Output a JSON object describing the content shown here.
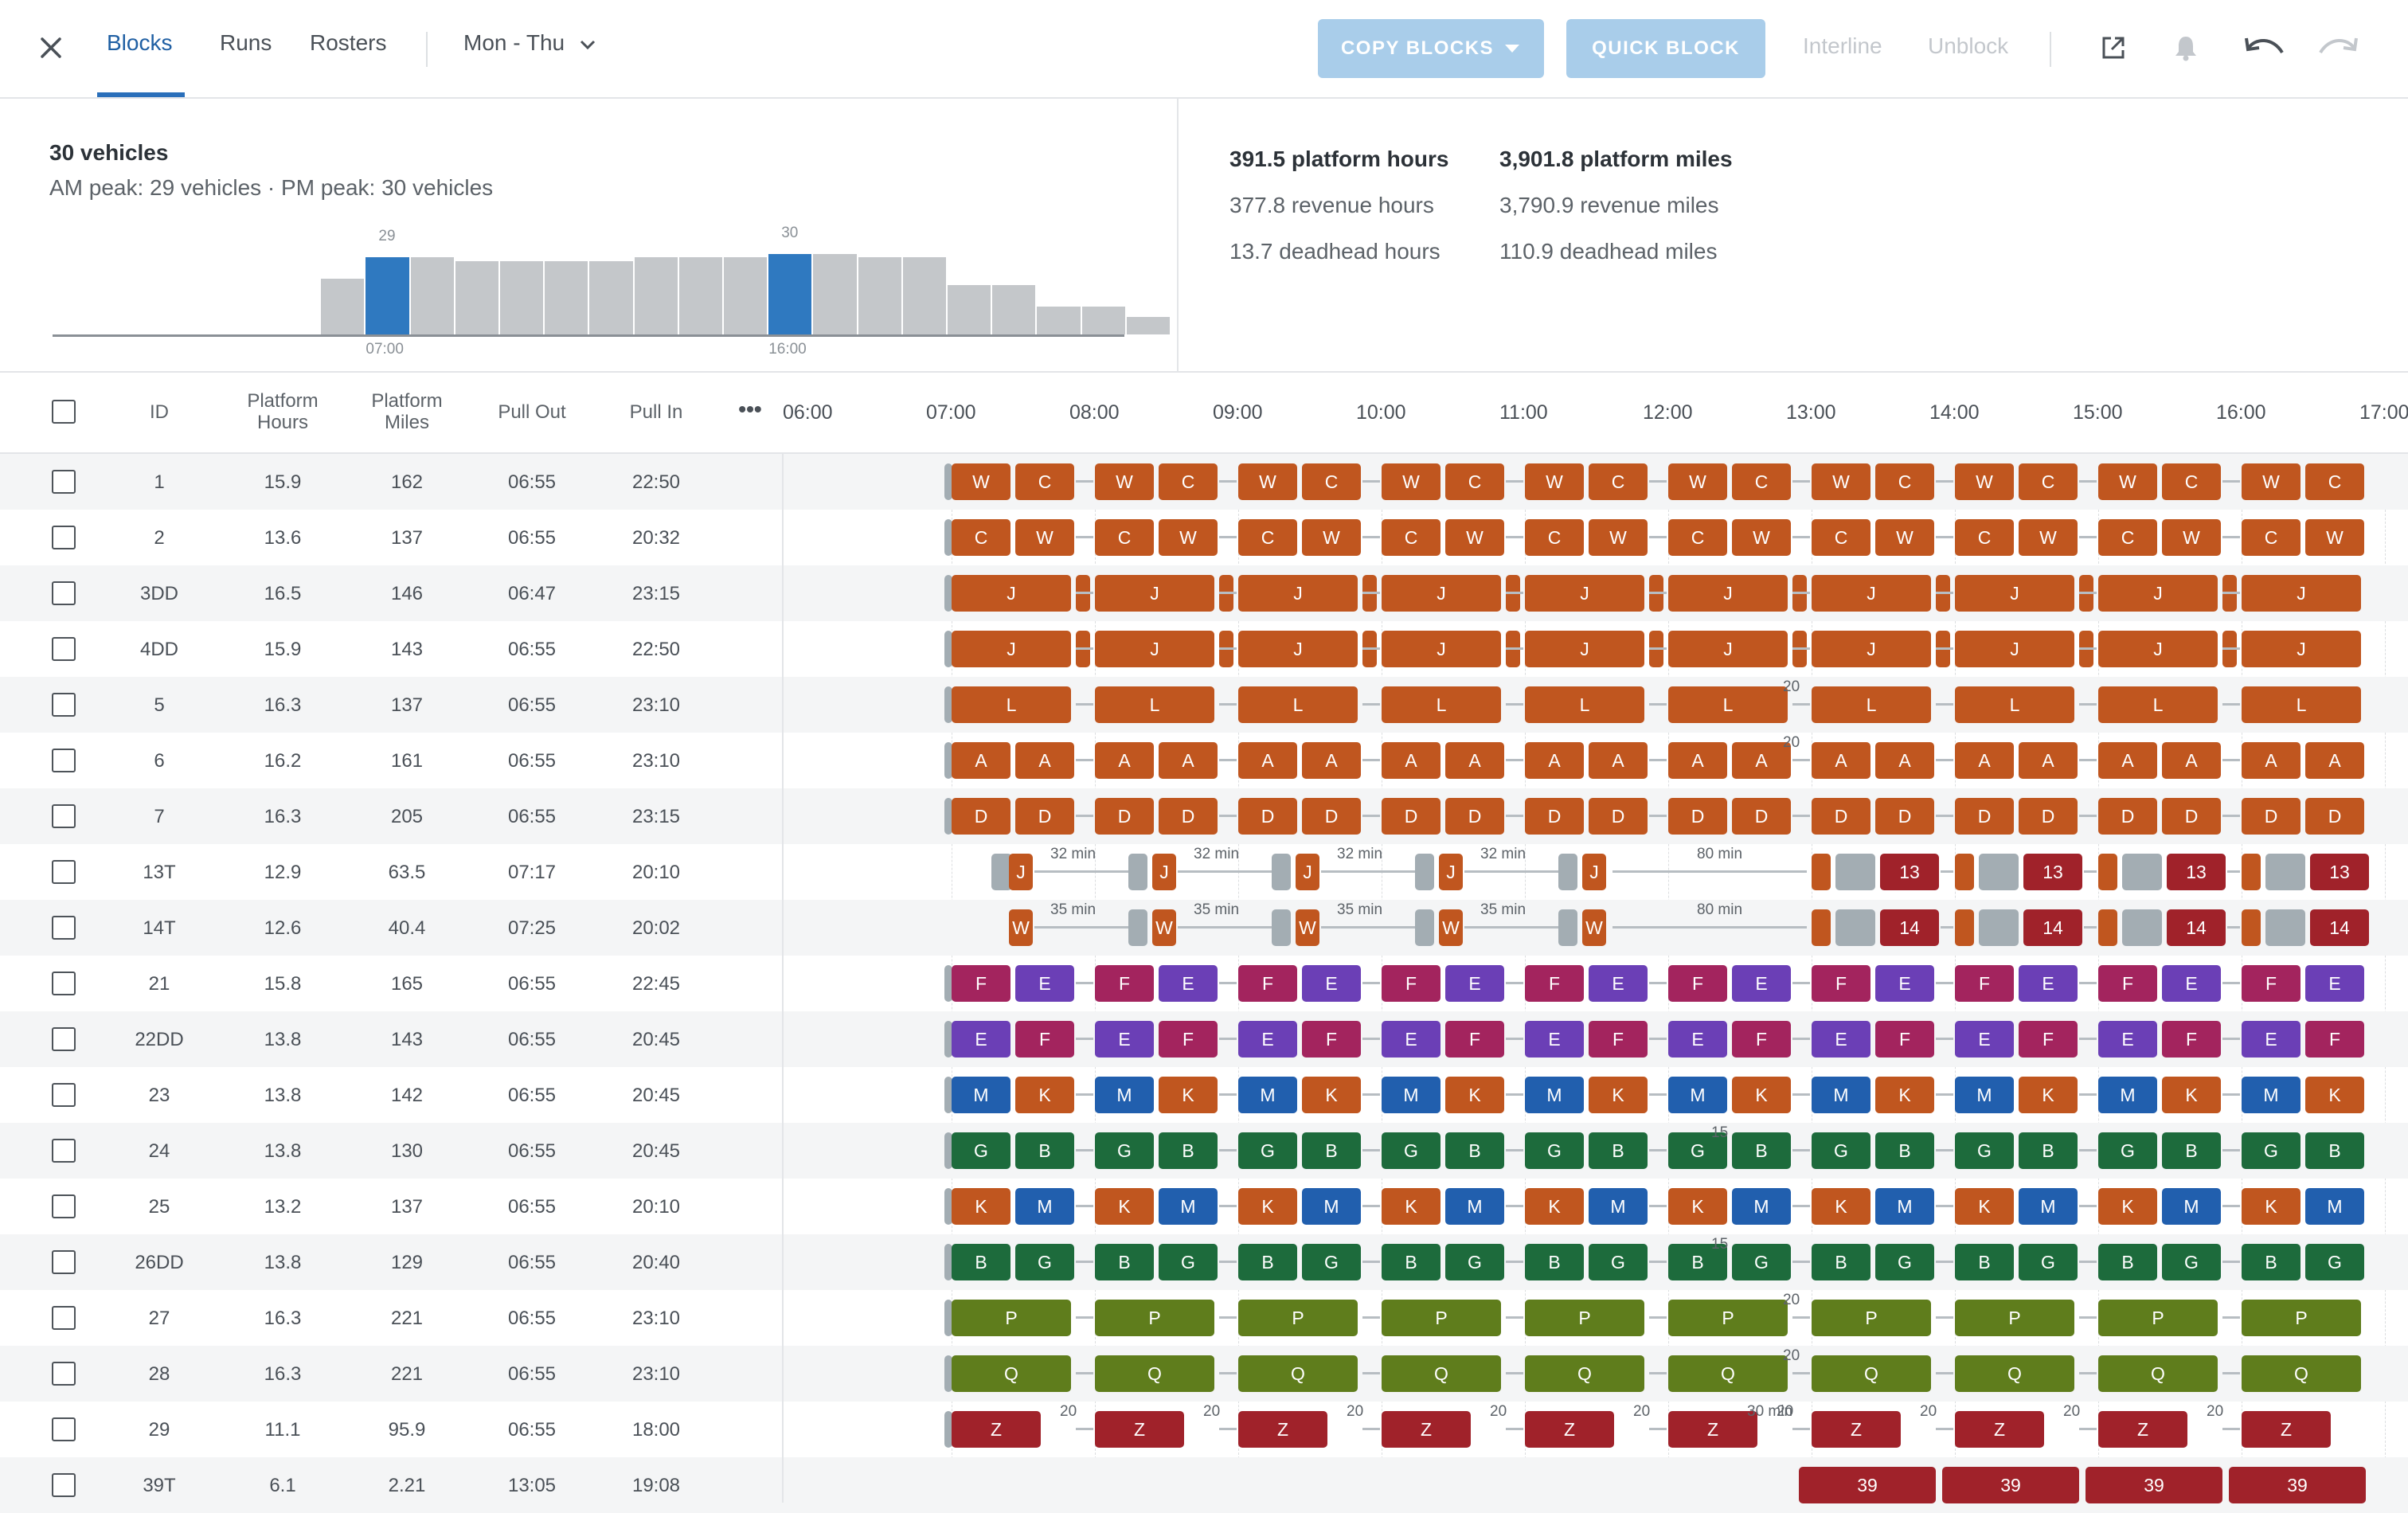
{
  "nav": {
    "tabs": [
      {
        "label": "Blocks",
        "active": true
      },
      {
        "label": "Runs"
      },
      {
        "label": "Rosters"
      }
    ],
    "day_filter": "Mon - Thu",
    "copy_blocks": "COPY BLOCKS",
    "quick_block": "QUICK BLOCK",
    "interline": "Interline",
    "unblock": "Unblock"
  },
  "summary": {
    "vehicles": "30 vehicles",
    "peaks": "AM peak: 29 vehicles · PM peak: 30 vehicles",
    "platform_hours": "391.5 platform hours",
    "revenue_hours": "377.8 revenue hours",
    "deadhead_hours": "13.7 deadhead hours",
    "platform_miles": "3,901.8 platform miles",
    "revenue_miles": "3,790.9 revenue miles",
    "deadhead_miles": "110.9 deadhead miles"
  },
  "histogram": {
    "am_peak_label": "29",
    "pm_peak_label": "30",
    "am_time": "07:00",
    "pm_time": "16:00",
    "levels": [
      0,
      0,
      0,
      0,
      0,
      0,
      16,
      22,
      22,
      21,
      21,
      21,
      21,
      22,
      22,
      22,
      23,
      23,
      22,
      22,
      14,
      14,
      8,
      8,
      5
    ]
  },
  "table_header": {
    "id": "ID",
    "platform_hours": "Platform Hours",
    "platform_miles": "Platform Miles",
    "pull_out": "Pull Out",
    "pull_in": "Pull In",
    "more": "•••"
  },
  "timeline_hours": [
    "06:00",
    "07:00",
    "08:00",
    "09:00",
    "10:00",
    "11:00",
    "12:00",
    "13:00",
    "14:00",
    "15:00",
    "16:00",
    "17:00"
  ],
  "colors": {
    "accent": "#2a6fba",
    "orange": "#c0561f",
    "purple": "#6b3fb6",
    "magenta": "#a3245e",
    "blue": "#215fae",
    "green": "#1d6b3c",
    "olive": "#5f7d1c",
    "red": "#a0222a",
    "deadhead": "#a3adb3"
  },
  "rows": [
    {
      "id": "1",
      "platform_hours": "15.9",
      "platform_miles": "162",
      "pull_out": "06:55",
      "pull_in": "22:50"
    },
    {
      "id": "2",
      "platform_hours": "13.6",
      "platform_miles": "137",
      "pull_out": "06:55",
      "pull_in": "20:32"
    },
    {
      "id": "3DD",
      "platform_hours": "16.5",
      "platform_miles": "146",
      "pull_out": "06:47",
      "pull_in": "23:15"
    },
    {
      "id": "4DD",
      "platform_hours": "15.9",
      "platform_miles": "143",
      "pull_out": "06:55",
      "pull_in": "22:50"
    },
    {
      "id": "5",
      "platform_hours": "16.3",
      "platform_miles": "137",
      "pull_out": "06:55",
      "pull_in": "23:10"
    },
    {
      "id": "6",
      "platform_hours": "16.2",
      "platform_miles": "161",
      "pull_out": "06:55",
      "pull_in": "23:10"
    },
    {
      "id": "7",
      "platform_hours": "16.3",
      "platform_miles": "205",
      "pull_out": "06:55",
      "pull_in": "23:15"
    },
    {
      "id": "13T",
      "platform_hours": "12.9",
      "platform_miles": "63.5",
      "pull_out": "07:17",
      "pull_in": "20:10"
    },
    {
      "id": "14T",
      "platform_hours": "12.6",
      "platform_miles": "40.4",
      "pull_out": "07:25",
      "pull_in": "20:02"
    },
    {
      "id": "21",
      "platform_hours": "15.8",
      "platform_miles": "165",
      "pull_out": "06:55",
      "pull_in": "22:45"
    },
    {
      "id": "22DD",
      "platform_hours": "13.8",
      "platform_miles": "143",
      "pull_out": "06:55",
      "pull_in": "20:45"
    },
    {
      "id": "23",
      "platform_hours": "13.8",
      "platform_miles": "142",
      "pull_out": "06:55",
      "pull_in": "20:45"
    },
    {
      "id": "24",
      "platform_hours": "13.8",
      "platform_miles": "130",
      "pull_out": "06:55",
      "pull_in": "20:45"
    },
    {
      "id": "25",
      "platform_hours": "13.2",
      "platform_miles": "137",
      "pull_out": "06:55",
      "pull_in": "20:10"
    },
    {
      "id": "26DD",
      "platform_hours": "13.8",
      "platform_miles": "129",
      "pull_out": "06:55",
      "pull_in": "20:40"
    },
    {
      "id": "27",
      "platform_hours": "16.3",
      "platform_miles": "221",
      "pull_out": "06:55",
      "pull_in": "23:10"
    },
    {
      "id": "28",
      "platform_hours": "16.3",
      "platform_miles": "221",
      "pull_out": "06:55",
      "pull_in": "23:10"
    },
    {
      "id": "29",
      "platform_hours": "11.1",
      "platform_miles": "95.9",
      "pull_out": "06:55",
      "pull_in": "18:00"
    },
    {
      "id": "39T",
      "platform_hours": "6.1",
      "platform_miles": "2.21",
      "pull_out": "13:05",
      "pull_in": "19:08"
    }
  ],
  "timeline_rows": [
    {
      "pattern": "pair",
      "a": "W",
      "b": "C",
      "ca": "orange",
      "cb": "orange"
    },
    {
      "pattern": "pair",
      "a": "C",
      "b": "W",
      "ca": "orange",
      "cb": "orange"
    },
    {
      "pattern": "single",
      "a": "J",
      "ca": "orange",
      "split": true
    },
    {
      "pattern": "single",
      "a": "J",
      "ca": "orange",
      "split": true
    },
    {
      "pattern": "single",
      "a": "L",
      "ca": "orange",
      "gap_label": "20"
    },
    {
      "pattern": "pair",
      "a": "A",
      "b": "A",
      "ca": "orange",
      "cb": "orange",
      "gap_label": "20"
    },
    {
      "pattern": "pair",
      "a": "D",
      "b": "D",
      "ca": "orange",
      "cb": "orange"
    },
    {
      "pattern": "trip",
      "a": "J",
      "ca": "orange",
      "after": "13",
      "cafter": "red",
      "gap_labels": [
        "32 min",
        "32 min",
        "32 min",
        "32 min",
        "80 min"
      ]
    },
    {
      "pattern": "trip",
      "a": "W",
      "ca": "orange",
      "after": "14",
      "cafter": "red",
      "gap_labels": [
        "35 min",
        "35 min",
        "35 min",
        "35 min",
        "80 min"
      ]
    },
    {
      "pattern": "pair",
      "a": "F",
      "b": "E",
      "ca": "magenta",
      "cb": "purple"
    },
    {
      "pattern": "pair",
      "a": "E",
      "b": "F",
      "ca": "purple",
      "cb": "magenta"
    },
    {
      "pattern": "pair",
      "a": "M",
      "b": "K",
      "ca": "blue",
      "cb": "orange"
    },
    {
      "pattern": "pair",
      "a": "G",
      "b": "B",
      "ca": "green",
      "cb": "green",
      "gap_label": "15"
    },
    {
      "pattern": "pair",
      "a": "K",
      "b": "M",
      "ca": "orange",
      "cb": "blue"
    },
    {
      "pattern": "pair",
      "a": "B",
      "b": "G",
      "ca": "green",
      "cb": "green",
      "gap_label": "15"
    },
    {
      "pattern": "single",
      "a": "P",
      "ca": "olive",
      "gap_label": "20"
    },
    {
      "pattern": "single",
      "a": "Q",
      "ca": "olive",
      "gap_label": "20"
    },
    {
      "pattern": "single",
      "a": "Z",
      "ca": "red",
      "gap_label": "20",
      "long_gap_label": "30 min"
    },
    {
      "pattern": "late",
      "a": "39",
      "ca": "red"
    }
  ]
}
